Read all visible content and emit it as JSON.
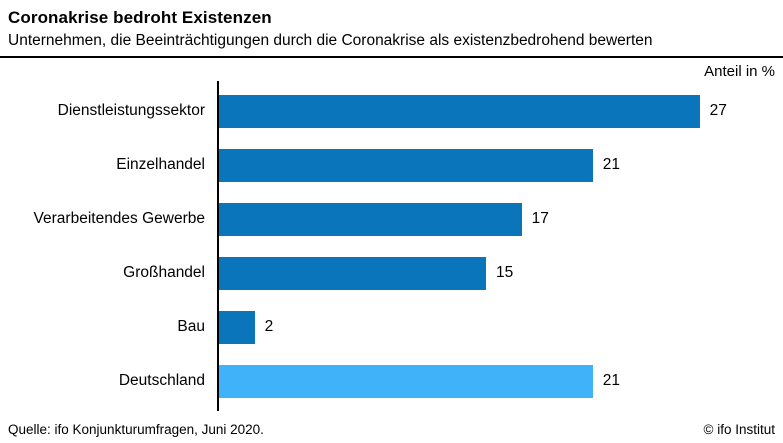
{
  "chart_data": {
    "type": "bar",
    "orientation": "horizontal",
    "title": "Coronakrise bedroht Existenzen",
    "subtitle": "Unternehmen, die Beeinträchtigungen durch die Coronakrise als existenzbedrohend bewerten",
    "unit_label": "Anteil in %",
    "categories": [
      "Dienstleistungssektor",
      "Einzelhandel",
      "Verarbeitendes Gewerbe",
      "Großhandel",
      "Bau",
      "Deutschland"
    ],
    "values": [
      27,
      21,
      17,
      15,
      2,
      21
    ],
    "bar_colors": [
      "#0b75bb",
      "#0b75bb",
      "#0b75bb",
      "#0b75bb",
      "#0b75bb",
      "#3fb2f9"
    ],
    "value_label_position": "right-of-bar",
    "grid": false,
    "legend": false,
    "source": "Quelle: ifo Konjunkturumfragen, Juni 2020.",
    "copyright": "© ifo Institut"
  }
}
